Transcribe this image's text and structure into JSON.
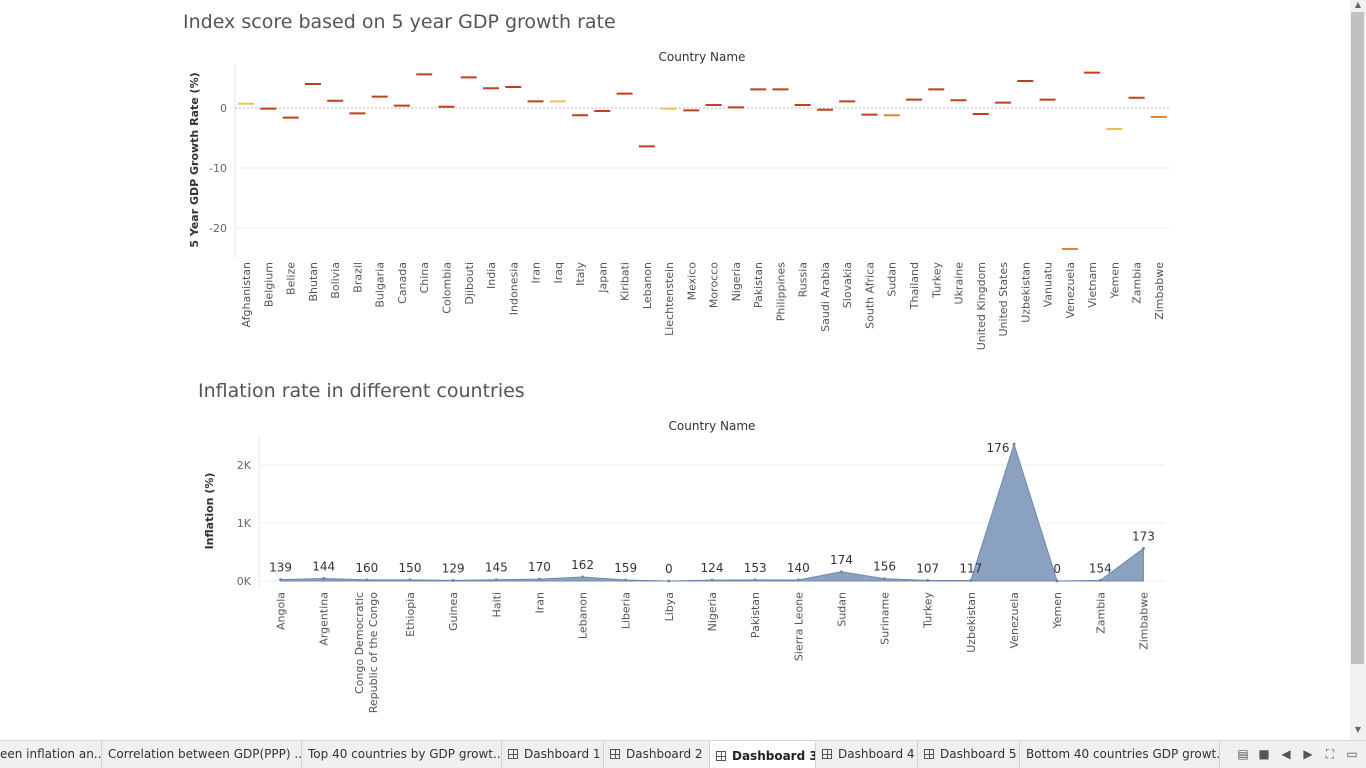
{
  "gdp_chart": {
    "title": "Index score based on 5 year GDP growth rate",
    "header": "Country Name",
    "ylabel": "5 Year GDP Growth Rate (%)",
    "yticks": [
      "0",
      "-10",
      "-20"
    ],
    "chart_data": {
      "type": "scatter",
      "title": "Index score based on 5 year GDP growth rate",
      "xlabel": "Country Name",
      "ylabel": "5 Year GDP Growth Rate (%)",
      "ylim": [
        -25,
        7
      ],
      "categories": [
        "Afghanistan",
        "Belgium",
        "Belize",
        "Bhutan",
        "Bolivia",
        "Brazil",
        "Bulgaria",
        "Canada",
        "China",
        "Colombia",
        "Djibouti",
        "India",
        "Indonesia",
        "Iran",
        "Iraq",
        "Italy",
        "Japan",
        "Kiribati",
        "Lebanon",
        "Liechtenstein",
        "Mexico",
        "Morocco",
        "Nigeria",
        "Pakistan",
        "Philippines",
        "Russia",
        "Saudi Arabia",
        "Slovakia",
        "South Africa",
        "Sudan",
        "Thailand",
        "Turkey",
        "Ukraine",
        "United Kingdom",
        "United States",
        "Uzbekistan",
        "Vanuatu",
        "Venezuela",
        "Vietnam",
        "Yemen",
        "Zambia",
        "Zimbabwe"
      ],
      "values": [
        0.7,
        -0.1,
        -1.6,
        4.0,
        1.2,
        -0.9,
        1.9,
        0.4,
        5.6,
        0.2,
        5.1,
        3.3,
        3.5,
        1.1,
        1.1,
        -1.2,
        -0.5,
        2.4,
        -6.4,
        -0.1,
        -0.4,
        0.5,
        0.1,
        3.1,
        3.1,
        0.5,
        -0.3,
        1.1,
        -1.1,
        -1.2,
        1.4,
        3.1,
        1.3,
        -1.0,
        0.9,
        4.5,
        1.4,
        -23.5,
        5.9,
        -3.5,
        1.7,
        -1.5
      ],
      "grid": true,
      "legend": "none"
    }
  },
  "inflation_chart": {
    "title": "Inflation rate in different countries",
    "header": "Country Name",
    "ylabel": "Inflation (%)",
    "yticks": [
      "2K",
      "1K",
      "0K"
    ],
    "chart_data": {
      "type": "area",
      "title": "Inflation rate in different countries",
      "xlabel": "Country Name",
      "ylabel": "Inflation (%)",
      "ylim": [
        -120,
        2500
      ],
      "categories": [
        "Angola",
        "Argentina",
        "Congo Democratic Republic of the Congo",
        "Ethiopia",
        "Guinea",
        "Haiti",
        "Iran",
        "Lebanon",
        "Liberia",
        "Libya",
        "Nigeria",
        "Pakistan",
        "Sierra Leone",
        "Sudan",
        "Suriname",
        "Turkey",
        "Uzbekistan",
        "Venezuela",
        "Yemen",
        "Zambia",
        "Zimbabwe"
      ],
      "values": [
        25,
        43,
        20,
        19,
        12,
        23,
        33,
        70,
        18,
        0,
        16,
        20,
        18,
        160,
        40,
        12,
        10,
        2360,
        0,
        11,
        560
      ],
      "labels": [
        "139",
        "144",
        "160",
        "150",
        "129",
        "145",
        "170",
        "162",
        "159",
        "0",
        "124",
        "153",
        "140",
        "174",
        "156",
        "107",
        "117",
        "176",
        "0",
        "154",
        "173"
      ],
      "grid": true,
      "legend": "none"
    }
  },
  "tabs": [
    "een inflation an...",
    "Correlation between GDP(PPP) ...",
    "Top 40 countries by GDP growt...",
    "Dashboard 1",
    "Dashboard 2",
    "Dashboard 3",
    "Dashboard 4",
    "Dashboard 5",
    "Bottom 40 countries GDP growt..."
  ],
  "active_tab": "Dashboard 3",
  "colors": {
    "accent": "#c0401c",
    "yellow": "#f2c04a",
    "orange": "#e8832a",
    "area_fill": "#8aa2c0",
    "area_stroke": "#6f89ad"
  },
  "icons": {
    "sheet_icon": "grid-icon",
    "controls": [
      "filmstrip-icon",
      "tab-view-icon",
      "prev-icon",
      "next-icon",
      "fullscreen-icon",
      "present-icon"
    ]
  }
}
